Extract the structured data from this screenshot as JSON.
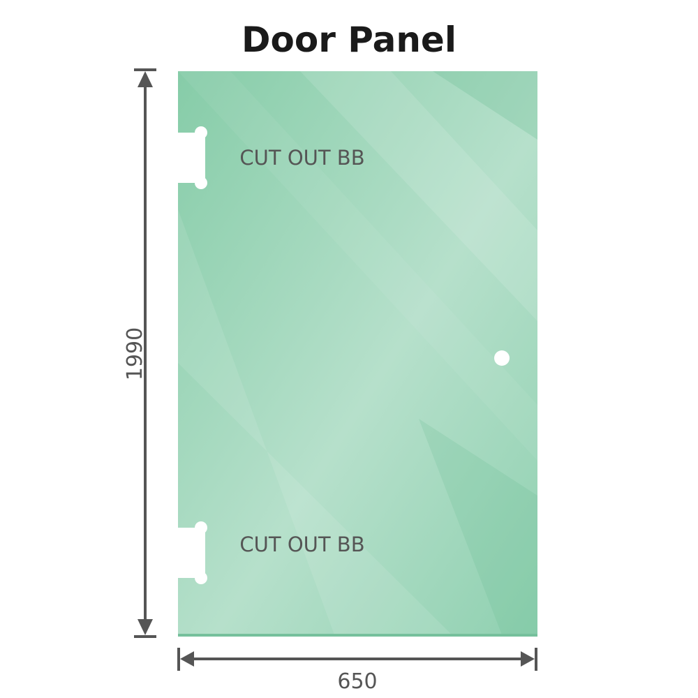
{
  "title": "Door Panel",
  "dimensions": {
    "height": "1990",
    "width": "650"
  },
  "cutouts": [
    {
      "label": "CUT OUT BB"
    },
    {
      "label": "CUT OUT BB"
    }
  ],
  "colors": {
    "glass": "#8fd0b0",
    "glass_dark": "#7cc6a2",
    "glass_light": "#b8e2cd",
    "dimension_line": "#555555"
  }
}
